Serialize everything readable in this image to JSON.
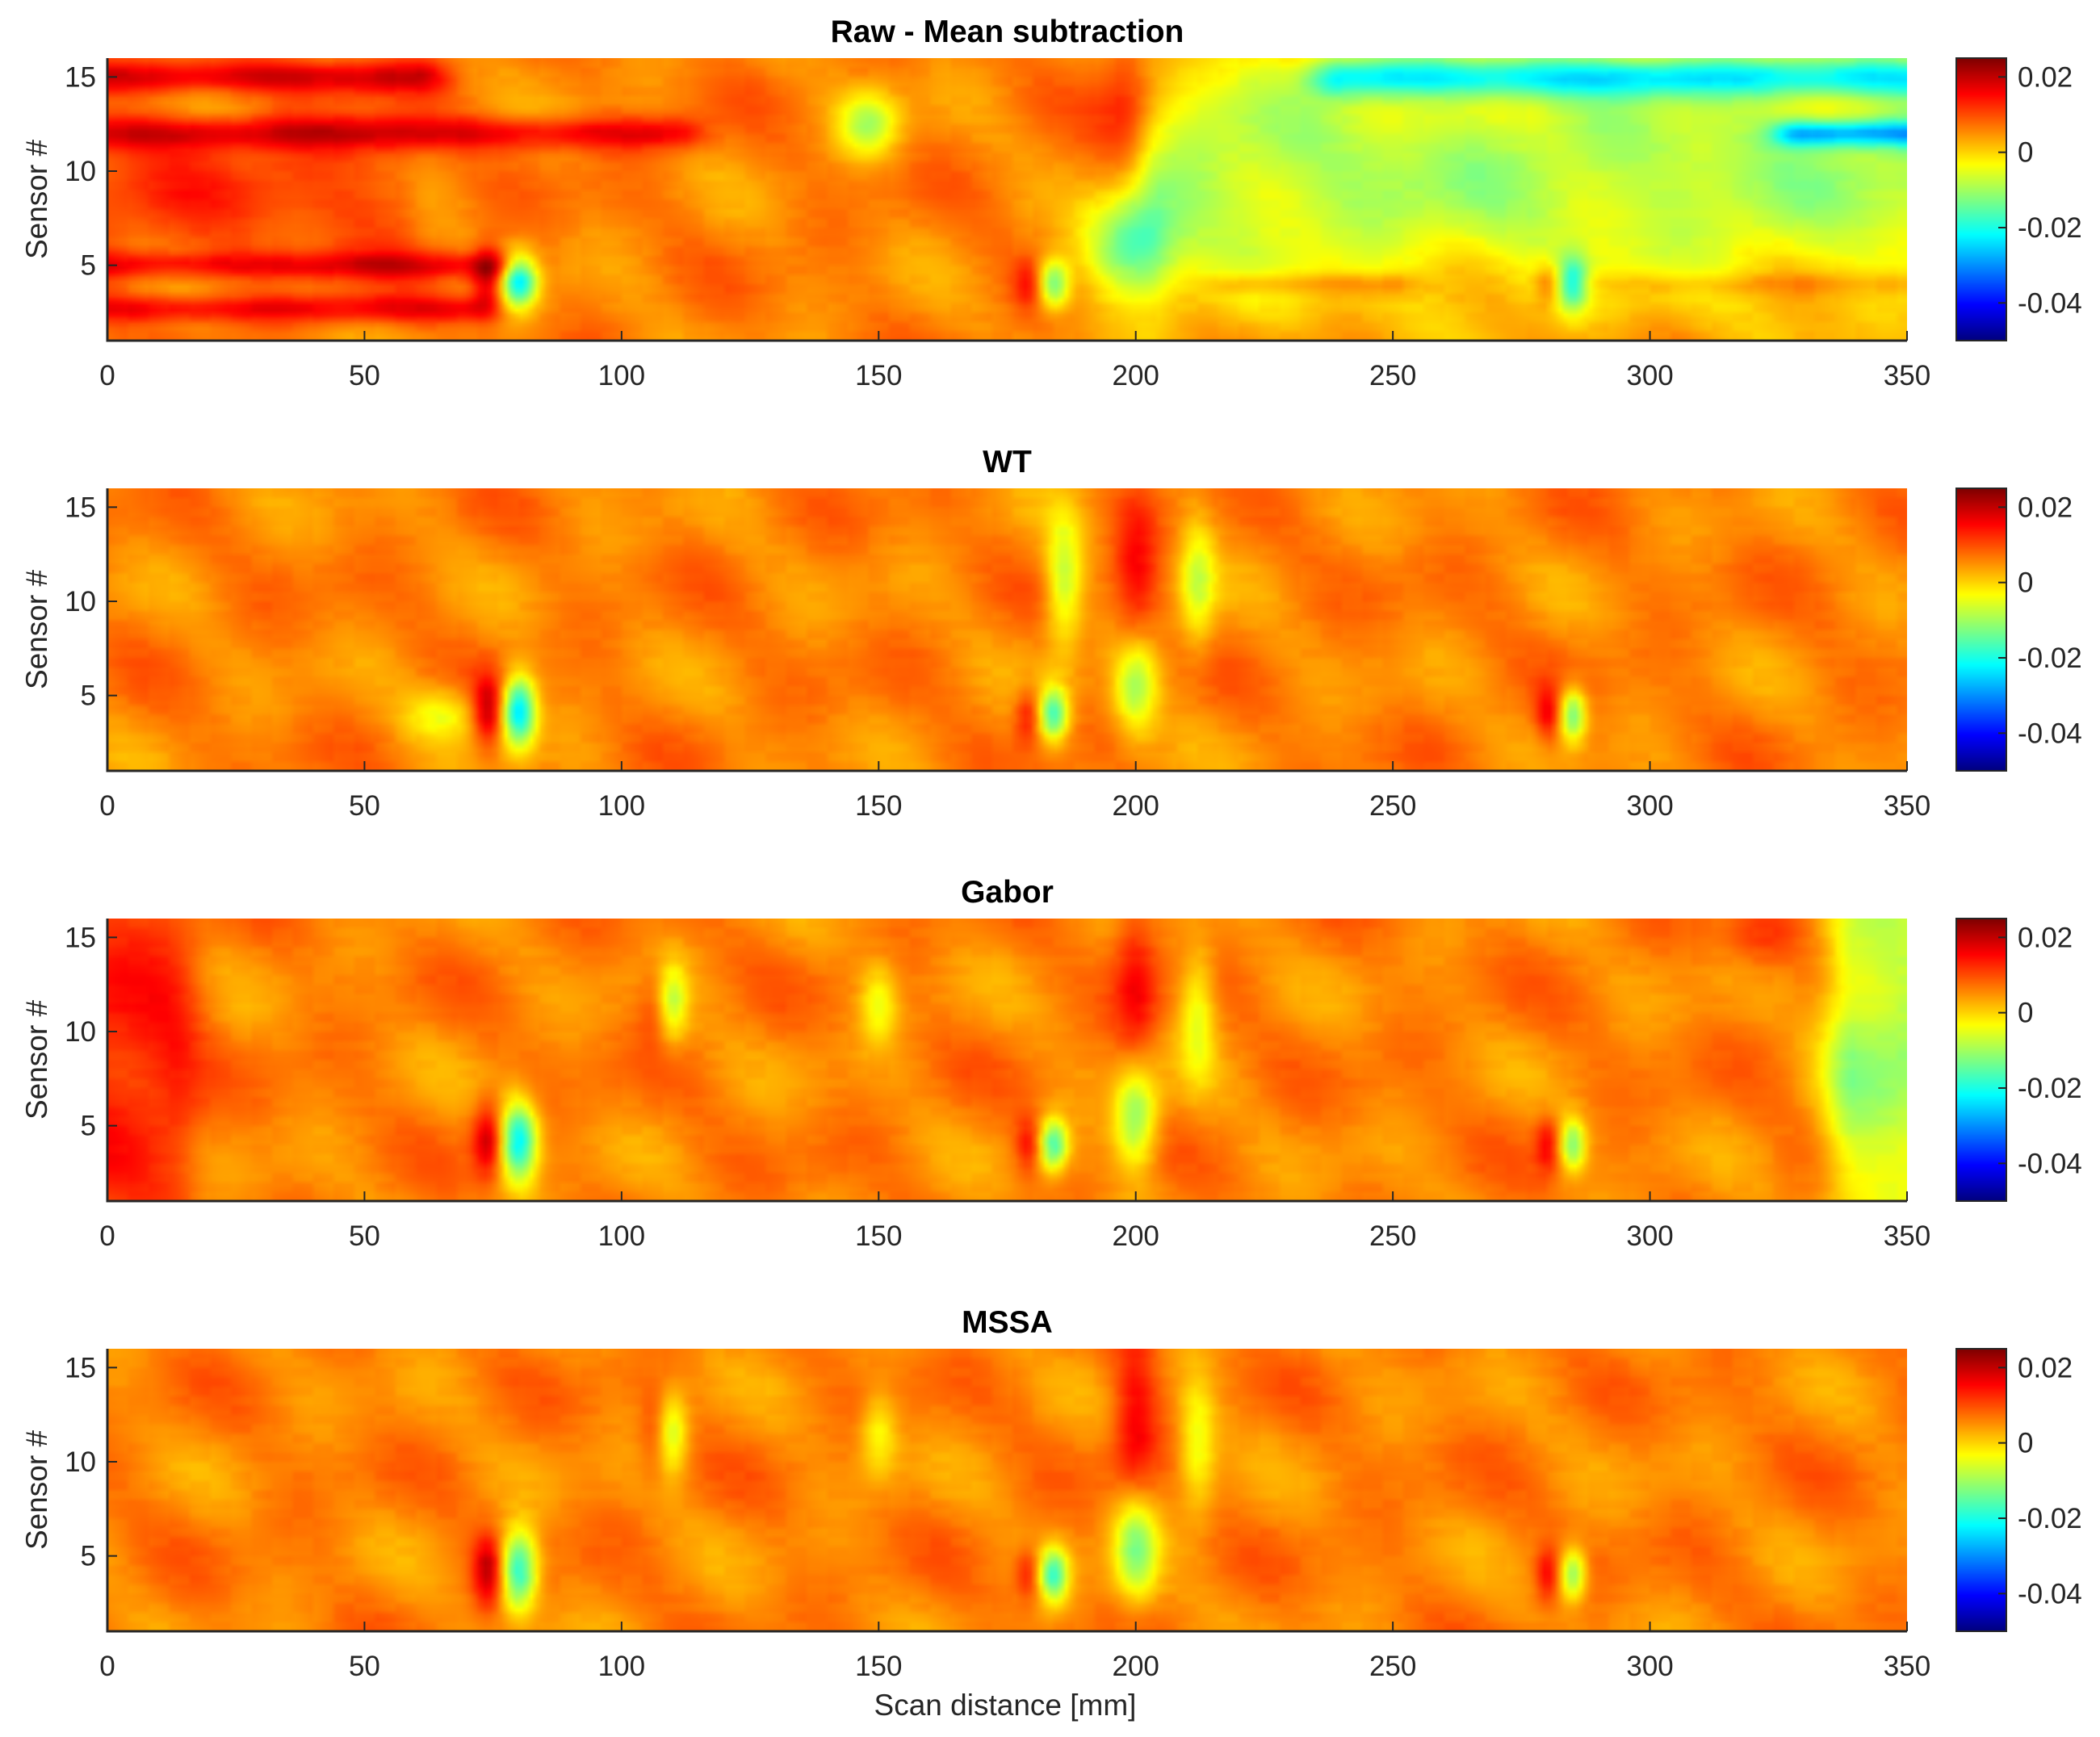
{
  "chart_data": {
    "type": "heatmap",
    "shared": {
      "xlabel": "Scan distance [mm]",
      "ylabel": "Sensor #",
      "xlim": [
        0,
        350
      ],
      "ylim": [
        1,
        16
      ],
      "x_ticks": [
        0,
        50,
        100,
        150,
        200,
        250,
        300,
        350
      ],
      "y_ticks": [
        5,
        10,
        15
      ],
      "colorbar": {
        "colormap": "jet",
        "clim": [
          -0.05,
          0.025
        ],
        "ticks": [
          0.02,
          0,
          -0.02,
          -0.04
        ],
        "tick_labels": [
          "0.02",
          "0",
          "-0.02",
          "-0.04"
        ]
      }
    },
    "panels": [
      {
        "title": "Raw - Mean subtraction",
        "background": 0.006,
        "stripes": [
          {
            "x0": 0,
            "x1": 60,
            "y": 15,
            "h": 1.2,
            "v": 0.018
          },
          {
            "x0": 0,
            "x1": 110,
            "y": 12,
            "h": 1.2,
            "v": 0.017
          },
          {
            "x0": 0,
            "x1": 75,
            "y": 5,
            "h": 1.0,
            "v": 0.016
          },
          {
            "x0": 0,
            "x1": 70,
            "y": 2.7,
            "h": 1.0,
            "v": 0.016
          },
          {
            "x0": 0,
            "x1": 55,
            "y": 9,
            "h": 5,
            "v": 0.011
          },
          {
            "x0": 205,
            "x1": 350,
            "y": 10,
            "h": 10,
            "v": -0.009
          },
          {
            "x0": 240,
            "x1": 350,
            "y": 15,
            "h": 1.5,
            "v": -0.014
          },
          {
            "x0": 330,
            "x1": 350,
            "y": 12,
            "h": 1.0,
            "v": -0.016
          },
          {
            "x0": 220,
            "x1": 250,
            "y": 4,
            "h": 0.8,
            "v": 0.012
          },
          {
            "x0": 290,
            "x1": 350,
            "y": 4,
            "h": 0.8,
            "v": 0.01
          }
        ],
        "blobs": [
          {
            "x": 74,
            "y": 4.2,
            "sx": 2.2,
            "sy": 1.2,
            "v": 0.02
          },
          {
            "x": 80,
            "y": 4.2,
            "sx": 2.5,
            "sy": 1.0,
            "v": -0.022
          },
          {
            "x": 179,
            "y": 4.0,
            "sx": 2.0,
            "sy": 0.9,
            "v": 0.014
          },
          {
            "x": 184,
            "y": 4.0,
            "sx": 2.2,
            "sy": 0.9,
            "v": -0.014
          },
          {
            "x": 200,
            "y": 13,
            "sx": 5,
            "sy": 3,
            "v": 0.015
          },
          {
            "x": 198,
            "y": 6,
            "sx": 6,
            "sy": 2,
            "v": -0.014
          },
          {
            "x": 280,
            "y": 4.0,
            "sx": 1.8,
            "sy": 0.8,
            "v": 0.014
          },
          {
            "x": 285,
            "y": 4.0,
            "sx": 2.0,
            "sy": 1.0,
            "v": -0.012
          },
          {
            "x": 148,
            "y": 12.5,
            "sx": 4,
            "sy": 1.2,
            "v": -0.008
          }
        ]
      },
      {
        "title": "WT",
        "background": 0.006,
        "stripes": [],
        "blobs": [
          {
            "x": 74,
            "y": 4.2,
            "sx": 2.0,
            "sy": 1.3,
            "v": 0.02
          },
          {
            "x": 80,
            "y": 4.2,
            "sx": 2.3,
            "sy": 1.3,
            "v": -0.024
          },
          {
            "x": 179,
            "y": 4.0,
            "sx": 1.8,
            "sy": 1.0,
            "v": 0.015
          },
          {
            "x": 184,
            "y": 4.0,
            "sx": 2.0,
            "sy": 1.0,
            "v": -0.016
          },
          {
            "x": 200,
            "y": 11.5,
            "sx": 3,
            "sy": 3,
            "v": 0.015
          },
          {
            "x": 200,
            "y": 5.5,
            "sx": 3,
            "sy": 1.8,
            "v": -0.01
          },
          {
            "x": 186,
            "y": 11,
            "sx": 2.5,
            "sy": 2.5,
            "v": -0.008
          },
          {
            "x": 212,
            "y": 11,
            "sx": 2.5,
            "sy": 2.5,
            "v": -0.006
          },
          {
            "x": 280,
            "y": 4.0,
            "sx": 1.6,
            "sy": 1.0,
            "v": 0.015
          },
          {
            "x": 285,
            "y": 4.0,
            "sx": 1.8,
            "sy": 1.0,
            "v": -0.014
          },
          {
            "x": 65,
            "y": 4.0,
            "sx": 5,
            "sy": 1.0,
            "v": -0.004
          }
        ]
      },
      {
        "title": "Gabor",
        "background": 0.006,
        "stripes": [
          {
            "x0": 0,
            "x1": 12,
            "y": 9,
            "h": 15,
            "v": 0.014
          },
          {
            "x0": 340,
            "x1": 350,
            "y": 9,
            "h": 15,
            "v": -0.01
          }
        ],
        "blobs": [
          {
            "x": 74,
            "y": 4.2,
            "sx": 2.0,
            "sy": 1.3,
            "v": 0.02
          },
          {
            "x": 80,
            "y": 4.2,
            "sx": 2.5,
            "sy": 1.5,
            "v": -0.022
          },
          {
            "x": 106,
            "y": 11.5,
            "sx": 2,
            "sy": 1.5,
            "v": 0.01
          },
          {
            "x": 110,
            "y": 11.5,
            "sx": 2,
            "sy": 1.5,
            "v": -0.006
          },
          {
            "x": 150,
            "y": 11.5,
            "sx": 2.5,
            "sy": 1.5,
            "v": -0.004
          },
          {
            "x": 179,
            "y": 4.0,
            "sx": 1.8,
            "sy": 1.0,
            "v": 0.015
          },
          {
            "x": 184,
            "y": 4.0,
            "sx": 2.0,
            "sy": 1.0,
            "v": -0.016
          },
          {
            "x": 200,
            "y": 12.5,
            "sx": 3,
            "sy": 3.5,
            "v": 0.015
          },
          {
            "x": 200,
            "y": 5.5,
            "sx": 3,
            "sy": 2,
            "v": -0.012
          },
          {
            "x": 212,
            "y": 11,
            "sx": 2.5,
            "sy": 2.5,
            "v": -0.005
          },
          {
            "x": 280,
            "y": 4.0,
            "sx": 1.6,
            "sy": 1.0,
            "v": 0.015
          },
          {
            "x": 285,
            "y": 4.0,
            "sx": 1.8,
            "sy": 1.0,
            "v": -0.012
          },
          {
            "x": 322,
            "y": 15,
            "sx": 5,
            "sy": 1.2,
            "v": 0.012
          }
        ]
      },
      {
        "title": "MSSA",
        "background": 0.006,
        "stripes": [],
        "blobs": [
          {
            "x": 74,
            "y": 4.2,
            "sx": 2.0,
            "sy": 1.3,
            "v": 0.02
          },
          {
            "x": 80,
            "y": 4.2,
            "sx": 2.5,
            "sy": 1.5,
            "v": -0.02
          },
          {
            "x": 106,
            "y": 11.5,
            "sx": 2,
            "sy": 1.5,
            "v": 0.01
          },
          {
            "x": 110,
            "y": 11.5,
            "sx": 2,
            "sy": 1.5,
            "v": -0.006
          },
          {
            "x": 150,
            "y": 11.5,
            "sx": 2.5,
            "sy": 1.5,
            "v": -0.004
          },
          {
            "x": 179,
            "y": 4.0,
            "sx": 1.8,
            "sy": 1.0,
            "v": 0.015
          },
          {
            "x": 184,
            "y": 4.0,
            "sx": 2.0,
            "sy": 1.0,
            "v": -0.016
          },
          {
            "x": 200,
            "y": 12.5,
            "sx": 3,
            "sy": 3.5,
            "v": 0.016
          },
          {
            "x": 200,
            "y": 5.5,
            "sx": 3,
            "sy": 2,
            "v": -0.012
          },
          {
            "x": 212,
            "y": 11,
            "sx": 2.5,
            "sy": 2.5,
            "v": -0.005
          },
          {
            "x": 280,
            "y": 4.0,
            "sx": 1.6,
            "sy": 1.0,
            "v": 0.015
          },
          {
            "x": 285,
            "y": 4.0,
            "sx": 1.8,
            "sy": 1.0,
            "v": -0.012
          }
        ]
      }
    ]
  }
}
